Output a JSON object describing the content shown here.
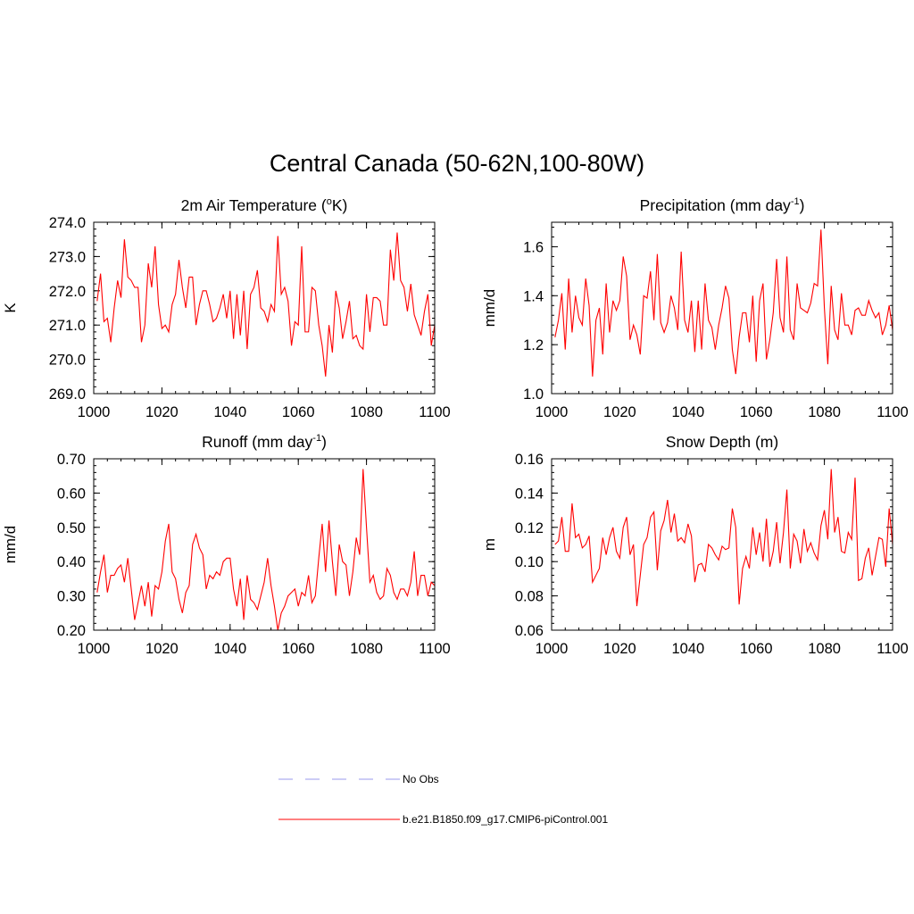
{
  "page": {
    "title": "Central Canada (50-62N,100-80W)"
  },
  "legend": [
    {
      "label": "No Obs",
      "style": "dashed",
      "color": "#9999ee"
    },
    {
      "label": "b.e21.B1850.f09_g17.CMIP6-piControl.001",
      "style": "solid",
      "color": "#ff0000"
    }
  ],
  "chart_data": [
    {
      "type": "line",
      "title": "2m Air Temperature (",
      "title_sup": "o",
      "title_end": "K)",
      "ylabel": "K",
      "xlim": [
        1000,
        1100
      ],
      "xticks": [
        1000,
        1020,
        1040,
        1060,
        1080,
        1100
      ],
      "ylim": [
        269.0,
        274.0
      ],
      "yticks": [
        "269.0",
        "270.0",
        "271.0",
        "272.0",
        "273.0",
        "274.0"
      ],
      "series": [
        {
          "name": "b.e21.B1850.f09_g17.CMIP6-piControl.001",
          "color": "#ff0000",
          "x_start": 1001,
          "values": [
            271.7,
            272.5,
            271.1,
            271.2,
            270.5,
            271.5,
            272.3,
            271.8,
            273.5,
            272.4,
            272.3,
            272.1,
            272.1,
            270.5,
            271.0,
            272.8,
            272.1,
            273.3,
            271.6,
            270.9,
            271.0,
            270.8,
            271.6,
            271.9,
            272.9,
            272.1,
            271.5,
            272.4,
            272.4,
            271.0,
            271.6,
            272.0,
            272.0,
            271.6,
            271.1,
            271.2,
            271.5,
            271.9,
            271.2,
            272.0,
            270.6,
            271.9,
            270.7,
            272.0,
            270.3,
            271.9,
            272.1,
            272.6,
            271.5,
            271.4,
            271.1,
            271.6,
            271.4,
            273.6,
            271.9,
            272.1,
            271.7,
            270.4,
            271.1,
            271.0,
            273.3,
            270.8,
            270.8,
            272.1,
            272.0,
            271.0,
            270.4,
            269.5,
            271.0,
            270.2,
            272.0,
            271.5,
            270.6,
            271.1,
            271.7,
            270.6,
            270.7,
            270.4,
            270.3,
            271.9,
            270.8,
            271.8,
            271.8,
            271.7,
            271.0,
            271.0,
            273.2,
            272.3,
            273.7,
            272.3,
            272.1,
            271.4,
            272.2,
            271.3,
            271.0,
            270.7,
            271.4,
            271.9,
            270.4,
            271.0
          ]
        }
      ]
    },
    {
      "type": "line",
      "title": "Precipitation (mm day",
      "title_sup": "-1",
      "title_end": ")",
      "ylabel": "mm/d",
      "xlim": [
        1000,
        1100
      ],
      "xticks": [
        1000,
        1020,
        1040,
        1060,
        1080,
        1100
      ],
      "ylim": [
        1.0,
        1.7
      ],
      "yticks": [
        "1.0",
        "1.2",
        "1.4",
        "1.6"
      ],
      "series": [
        {
          "name": "b.e21.B1850.f09_g17.CMIP6-piControl.001",
          "color": "#ff0000",
          "x_start": 1001,
          "values": [
            1.23,
            1.3,
            1.41,
            1.18,
            1.47,
            1.25,
            1.4,
            1.31,
            1.28,
            1.47,
            1.36,
            1.07,
            1.3,
            1.35,
            1.16,
            1.45,
            1.25,
            1.38,
            1.34,
            1.38,
            1.56,
            1.48,
            1.22,
            1.28,
            1.24,
            1.16,
            1.4,
            1.39,
            1.5,
            1.3,
            1.57,
            1.29,
            1.25,
            1.29,
            1.4,
            1.35,
            1.26,
            1.58,
            1.3,
            1.25,
            1.38,
            1.17,
            1.38,
            1.18,
            1.45,
            1.3,
            1.27,
            1.18,
            1.28,
            1.35,
            1.44,
            1.39,
            1.18,
            1.08,
            1.23,
            1.33,
            1.33,
            1.21,
            1.4,
            1.13,
            1.38,
            1.45,
            1.14,
            1.22,
            1.33,
            1.55,
            1.31,
            1.25,
            1.56,
            1.26,
            1.22,
            1.45,
            1.35,
            1.34,
            1.33,
            1.37,
            1.45,
            1.44,
            1.67,
            1.35,
            1.12,
            1.44,
            1.26,
            1.22,
            1.41,
            1.28,
            1.28,
            1.24,
            1.34,
            1.35,
            1.32,
            1.32,
            1.38,
            1.34,
            1.31,
            1.33,
            1.24,
            1.28,
            1.36,
            1.26
          ]
        }
      ]
    },
    {
      "type": "line",
      "title": "Runoff (mm day",
      "title_sup": "-1",
      "title_end": ")",
      "ylabel": "mm/d",
      "xlim": [
        1000,
        1100
      ],
      "xticks": [
        1000,
        1020,
        1040,
        1060,
        1080,
        1100
      ],
      "ylim": [
        0.2,
        0.7
      ],
      "yticks": [
        "0.20",
        "0.30",
        "0.40",
        "0.50",
        "0.60",
        "0.70"
      ],
      "series": [
        {
          "name": "b.e21.B1850.f09_g17.CMIP6-piControl.001",
          "color": "#ff0000",
          "x_start": 1001,
          "values": [
            0.31,
            0.37,
            0.42,
            0.31,
            0.36,
            0.36,
            0.38,
            0.39,
            0.34,
            0.41,
            0.32,
            0.23,
            0.28,
            0.33,
            0.27,
            0.34,
            0.24,
            0.33,
            0.32,
            0.37,
            0.46,
            0.51,
            0.37,
            0.35,
            0.29,
            0.25,
            0.31,
            0.33,
            0.45,
            0.48,
            0.44,
            0.42,
            0.32,
            0.36,
            0.35,
            0.37,
            0.36,
            0.4,
            0.41,
            0.41,
            0.32,
            0.27,
            0.35,
            0.23,
            0.36,
            0.29,
            0.28,
            0.26,
            0.3,
            0.34,
            0.41,
            0.33,
            0.27,
            0.2,
            0.25,
            0.27,
            0.3,
            0.31,
            0.32,
            0.27,
            0.31,
            0.3,
            0.36,
            0.28,
            0.3,
            0.41,
            0.51,
            0.37,
            0.52,
            0.4,
            0.3,
            0.45,
            0.4,
            0.39,
            0.3,
            0.37,
            0.47,
            0.42,
            0.67,
            0.5,
            0.34,
            0.36,
            0.31,
            0.29,
            0.3,
            0.38,
            0.36,
            0.31,
            0.29,
            0.32,
            0.32,
            0.3,
            0.34,
            0.43,
            0.3,
            0.36,
            0.36,
            0.3,
            0.34,
            0.33
          ]
        }
      ]
    },
    {
      "type": "line",
      "title": "Snow Depth (m)",
      "title_sup": "",
      "title_end": "",
      "ylabel": "m",
      "xlim": [
        1000,
        1100
      ],
      "xticks": [
        1000,
        1020,
        1040,
        1060,
        1080,
        1100
      ],
      "ylim": [
        0.06,
        0.16
      ],
      "yticks": [
        "0.06",
        "0.08",
        "0.10",
        "0.12",
        "0.14",
        "0.16"
      ],
      "series": [
        {
          "name": "b.e21.B1850.f09_g17.CMIP6-piControl.001",
          "color": "#ff0000",
          "x_start": 1001,
          "values": [
            0.11,
            0.112,
            0.126,
            0.106,
            0.106,
            0.134,
            0.114,
            0.116,
            0.108,
            0.11,
            0.115,
            0.088,
            0.092,
            0.096,
            0.114,
            0.104,
            0.114,
            0.12,
            0.106,
            0.102,
            0.12,
            0.126,
            0.104,
            0.11,
            0.074,
            0.092,
            0.11,
            0.114,
            0.126,
            0.129,
            0.095,
            0.118,
            0.124,
            0.136,
            0.117,
            0.128,
            0.112,
            0.114,
            0.111,
            0.122,
            0.115,
            0.088,
            0.098,
            0.099,
            0.094,
            0.11,
            0.108,
            0.104,
            0.101,
            0.109,
            0.107,
            0.108,
            0.131,
            0.12,
            0.075,
            0.096,
            0.103,
            0.096,
            0.12,
            0.104,
            0.117,
            0.1,
            0.125,
            0.097,
            0.106,
            0.123,
            0.099,
            0.117,
            0.142,
            0.096,
            0.116,
            0.112,
            0.099,
            0.119,
            0.106,
            0.111,
            0.105,
            0.101,
            0.121,
            0.13,
            0.113,
            0.154,
            0.117,
            0.126,
            0.106,
            0.105,
            0.117,
            0.113,
            0.149,
            0.089,
            0.09,
            0.102,
            0.108,
            0.092,
            0.103,
            0.114,
            0.113,
            0.097,
            0.131,
            0.11
          ]
        }
      ]
    }
  ]
}
